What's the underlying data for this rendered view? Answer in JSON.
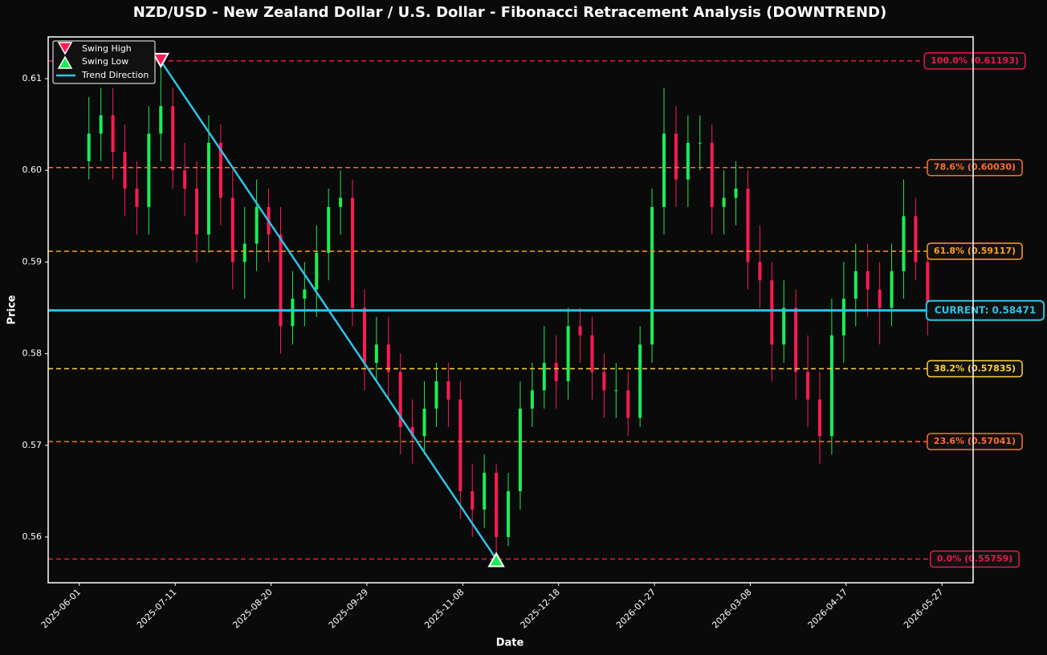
{
  "chart_data": {
    "type": "candlestick",
    "title": "NZD/USD - New Zealand Dollar / U.S. Dollar - Fibonacci Retracement Analysis (DOWNTREND)",
    "xlabel": "Date",
    "ylabel": "Price",
    "x": [
      "2025-06-05",
      "2025-06-10",
      "2025-06-15",
      "2025-06-20",
      "2025-06-25",
      "2025-06-30",
      "2025-07-05",
      "2025-07-10",
      "2025-07-15",
      "2025-07-20",
      "2025-07-25",
      "2025-07-30",
      "2025-08-04",
      "2025-08-09",
      "2025-08-14",
      "2025-08-19",
      "2025-08-24",
      "2025-08-29",
      "2025-09-03",
      "2025-09-08",
      "2025-09-13",
      "2025-09-18",
      "2025-09-23",
      "2025-09-28",
      "2025-10-03",
      "2025-10-08",
      "2025-10-13",
      "2025-10-18",
      "2025-10-23",
      "2025-10-28",
      "2025-11-02",
      "2025-11-07",
      "2025-11-12",
      "2025-11-17",
      "2025-11-22",
      "2025-11-27",
      "2025-12-02",
      "2025-12-07",
      "2025-12-12",
      "2025-12-17",
      "2025-12-22",
      "2025-12-27",
      "2026-01-01",
      "2026-01-06",
      "2026-01-11",
      "2026-01-16",
      "2026-01-21",
      "2026-01-26",
      "2026-01-31",
      "2026-02-05",
      "2026-02-10",
      "2026-02-15",
      "2026-02-20",
      "2026-02-25",
      "2026-03-02",
      "2026-03-07",
      "2026-03-12",
      "2026-03-17",
      "2026-03-22",
      "2026-03-27",
      "2026-04-01",
      "2026-04-06",
      "2026-04-11",
      "2026-04-16",
      "2026-04-21",
      "2026-04-26",
      "2026-05-01",
      "2026-05-06",
      "2026-05-11",
      "2026-05-16",
      "2026-05-21"
    ],
    "open": [
      0.601,
      0.604,
      0.606,
      0.602,
      0.598,
      0.596,
      0.604,
      0.607,
      0.6,
      0.598,
      0.593,
      0.603,
      0.597,
      0.59,
      0.592,
      0.596,
      0.593,
      0.583,
      0.586,
      0.587,
      0.591,
      0.596,
      0.597,
      0.585,
      0.579,
      0.581,
      0.578,
      0.572,
      0.571,
      0.574,
      0.577,
      0.575,
      0.565,
      0.563,
      0.567,
      0.56,
      0.565,
      0.574,
      0.576,
      0.579,
      0.577,
      0.583,
      0.582,
      0.578,
      0.576,
      0.576,
      0.573,
      0.581,
      0.596,
      0.604,
      0.599,
      0.603,
      0.603,
      0.596,
      0.597,
      0.598,
      0.59,
      0.588,
      0.581,
      0.585,
      0.578,
      0.575,
      0.571,
      0.582,
      0.586,
      0.589,
      0.587,
      0.585,
      0.589,
      0.595,
      0.59
    ],
    "high": [
      0.608,
      0.609,
      0.609,
      0.605,
      0.601,
      0.607,
      0.61193,
      0.609,
      0.603,
      0.601,
      0.606,
      0.605,
      0.6,
      0.596,
      0.599,
      0.598,
      0.596,
      0.589,
      0.59,
      0.594,
      0.598,
      0.6,
      0.599,
      0.587,
      0.584,
      0.584,
      0.58,
      0.575,
      0.577,
      0.579,
      0.579,
      0.577,
      0.568,
      0.569,
      0.568,
      0.567,
      0.577,
      0.579,
      0.583,
      0.582,
      0.585,
      0.585,
      0.584,
      0.58,
      0.579,
      0.578,
      0.583,
      0.598,
      0.609,
      0.607,
      0.606,
      0.606,
      0.605,
      0.6,
      0.601,
      0.6,
      0.594,
      0.59,
      0.588,
      0.587,
      0.582,
      0.578,
      0.586,
      0.59,
      0.592,
      0.592,
      0.59,
      0.592,
      0.599,
      0.597,
      0.591
    ],
    "low": [
      0.599,
      0.601,
      0.599,
      0.595,
      0.593,
      0.593,
      0.601,
      0.598,
      0.595,
      0.59,
      0.591,
      0.594,
      0.587,
      0.586,
      0.589,
      0.59,
      0.58,
      0.581,
      0.583,
      0.584,
      0.588,
      0.593,
      0.583,
      0.576,
      0.577,
      0.575,
      0.569,
      0.568,
      0.569,
      0.572,
      0.572,
      0.562,
      0.56,
      0.561,
      0.55759,
      0.559,
      0.563,
      0.572,
      0.574,
      0.574,
      0.575,
      0.579,
      0.575,
      0.573,
      0.573,
      0.571,
      0.572,
      0.579,
      0.593,
      0.596,
      0.596,
      0.6,
      0.593,
      0.593,
      0.594,
      0.587,
      0.585,
      0.577,
      0.579,
      0.575,
      0.572,
      0.568,
      0.569,
      0.579,
      0.583,
      0.584,
      0.581,
      0.583,
      0.586,
      0.588,
      0.582
    ],
    "close": [
      0.604,
      0.606,
      0.602,
      0.598,
      0.596,
      0.604,
      0.607,
      0.6,
      0.598,
      0.593,
      0.603,
      0.597,
      0.59,
      0.592,
      0.596,
      0.593,
      0.583,
      0.586,
      0.587,
      0.591,
      0.596,
      0.597,
      0.585,
      0.579,
      0.581,
      0.578,
      0.572,
      0.571,
      0.574,
      0.577,
      0.575,
      0.565,
      0.563,
      0.567,
      0.56,
      0.565,
      0.574,
      0.576,
      0.579,
      0.577,
      0.583,
      0.582,
      0.578,
      0.576,
      0.576,
      0.573,
      0.581,
      0.596,
      0.604,
      0.599,
      0.603,
      0.603,
      0.596,
      0.597,
      0.598,
      0.59,
      0.588,
      0.581,
      0.585,
      0.578,
      0.575,
      0.571,
      0.582,
      0.586,
      0.589,
      0.587,
      0.585,
      0.589,
      0.595,
      0.59,
      0.585
    ],
    "up_color": "#1aee55",
    "down_color": "#ff1a55",
    "xlim": [
      "2025-05-19",
      "2026-06-09"
    ],
    "xticks": [
      "2025-06-01",
      "2025-07-11",
      "2025-08-20",
      "2025-09-29",
      "2025-11-08",
      "2025-12-18",
      "2026-01-27",
      "2026-03-08",
      "2026-04-17",
      "2026-05-27"
    ],
    "ylim": [
      0.55501,
      0.61455
    ],
    "yticks": [
      0.56,
      0.57,
      0.58,
      0.59,
      {
        "value": 0.6,
        "label": "0.60"
      },
      0.61
    ],
    "fib_levels": [
      {
        "label": "100.0% (0.61193)",
        "value": 0.61193,
        "color": "#e8194b"
      },
      {
        "label": "78.6% (0.60030)",
        "value": 0.6003,
        "color": "#ff6b35"
      },
      {
        "label": "61.8% (0.59117)",
        "value": 0.59117,
        "color": "#ff9f1c"
      },
      {
        "label": "38.2% (0.57835)",
        "value": 0.57835,
        "color": "#ffd23f"
      },
      {
        "label": "23.6% (0.57041)",
        "value": 0.57041,
        "color": "#ff6b35"
      },
      {
        "label": "0.0% (0.55759)",
        "value": 0.55759,
        "color": "#e8194b"
      }
    ],
    "current": {
      "label": "CURRENT: 0.58471",
      "value": 0.58471,
      "color": "#2ec4e6"
    },
    "swing_high": {
      "name": "Swing High",
      "x": "2025-07-05",
      "value": 0.61193,
      "color": "#ff1a55"
    },
    "swing_low": {
      "name": "Swing Low",
      "x": "2025-11-22",
      "value": 0.55759,
      "color": "#1aee55"
    },
    "trend": {
      "name": "Trend Direction",
      "color": "#2ec4e6"
    }
  }
}
